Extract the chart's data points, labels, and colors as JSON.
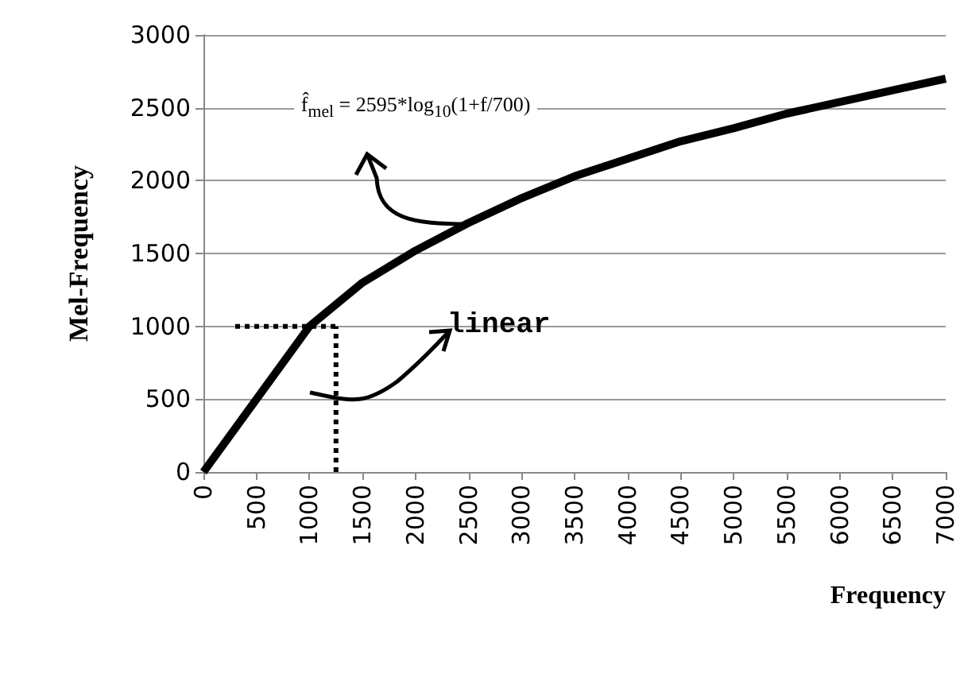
{
  "chart_data": {
    "type": "line",
    "xlabel": "Frequency",
    "ylabel": "Mel-Frequency",
    "xlim": [
      0,
      7000
    ],
    "xticks": [
      0,
      500,
      1000,
      1500,
      2000,
      2500,
      3000,
      3500,
      4000,
      4500,
      5000,
      5500,
      6000,
      6500,
      7000
    ],
    "ylim": [
      0,
      3000
    ],
    "yticks": [
      0,
      500,
      1000,
      1500,
      2000,
      2500,
      3000
    ],
    "grid": "y",
    "marker": "none",
    "series": [
      {
        "color": "#000000",
        "line_style": "solid",
        "x": [
          0,
          1000,
          1500,
          2000,
          2500,
          3000,
          3500,
          4000,
          4500,
          5000,
          5500,
          6000,
          6500,
          7000
        ],
        "values": [
          0,
          1000,
          1300,
          1520,
          1710,
          1880,
          2030,
          2150,
          2270,
          2360,
          2460,
          2540,
          2620,
          2700
        ]
      },
      {
        "color": "#000000",
        "line_style": "dotted",
        "x": [
          300,
          1250
        ],
        "values": [
          1000,
          1000
        ]
      },
      {
        "color": "#000000",
        "line_style": "dotted",
        "x": [
          1250,
          1250
        ],
        "values": [
          0,
          1000
        ]
      }
    ],
    "annotations": [
      "f̂$_{mel}$ = 2595*log$_{10}$(1+f/700)",
      "linear"
    ]
  }
}
